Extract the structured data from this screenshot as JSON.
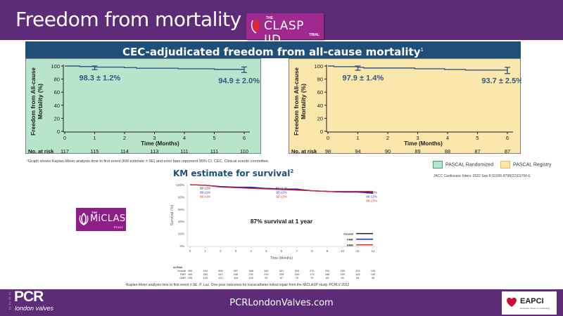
{
  "header": {
    "title": "Freedom from mortality",
    "trial_logo": {
      "the": "THE",
      "name": "CLASP IID",
      "trial": "TRIAL"
    }
  },
  "band": {
    "title": "CEC-adjudicated freedom from all-cause mortality",
    "superscript": "1"
  },
  "colors": {
    "header_bg": "#5d2b78",
    "band_bg": "#1f4e79",
    "randomized_bg": "#b7e4cb",
    "registry_bg": "#fbe6ac",
    "curve": "#2e5a87",
    "overall": "#222222",
    "fmr": "#1f1fd6",
    "dmr": "#e0262a"
  },
  "footnote1": "¹Graph shows Kaplan-Meier analysis time to first event (KM estimate ± SE) and error bars represent 95% CI. CEC, Clinical events committee.",
  "legend": [
    {
      "label": "PASCAL Randomized",
      "color": "#b7e4cb",
      "border": "#3aa07a"
    },
    {
      "label": "PASCAL Registry",
      "color": "#fbe6ac",
      "border": "#e0c060"
    }
  ],
  "citation": "JACC Cardiovasc Interv. 2022 Sep 8;S1936-8798(22)01704-6.",
  "km": {
    "title": "KM estimate for survival",
    "superscript": "2",
    "annotation": "87% survival at 1 year",
    "at_risk_title": "At Risk",
    "footnote": "²Kaplan-Meier analysis time to first event ± SE. P. Luz. One-year outcomes for transcatheter mitral repair from the MiCLASP study. PCRLV 2022"
  },
  "miclasp_logo": {
    "the": "THE",
    "name": "MiCLASP",
    "study": "STUDY"
  },
  "footer": {
    "year": "2022",
    "brand": "PCR",
    "brand_sub": "london valves",
    "url": "PCRLondonValves.com",
    "partner": "EAPCI",
    "partner_sub": "European Society of Cardiology"
  },
  "chart_data": [
    {
      "type": "line",
      "title": "PASCAL Randomized",
      "xlabel": "Time (Months)",
      "ylabel": "Freedom from All-cause Mortality (%)",
      "x_ticks": [
        "0",
        "1",
        "2",
        "3",
        "4",
        "5",
        "6"
      ],
      "y_ticks": [
        "0",
        "20",
        "40",
        "60",
        "80",
        "100"
      ],
      "xlim": [
        0,
        6
      ],
      "ylim": [
        0,
        100
      ],
      "series": [
        {
          "name": "KM estimate",
          "x": [
            0,
            0.5,
            1,
            2,
            2.4,
            3.8,
            5,
            6
          ],
          "y": [
            100,
            99.2,
            98.3,
            97.5,
            96.6,
            95.8,
            94.9,
            94.9
          ]
        }
      ],
      "error_bars": [
        {
          "x": 1,
          "y": 98.3,
          "lo": 94.5,
          "hi": 100
        },
        {
          "x": 6,
          "y": 94.9,
          "lo": 90,
          "hi": 98.5
        }
      ],
      "annotations": [
        "98.3 ± 1.2%",
        "94.9 ± 2.0%"
      ],
      "at_risk_label": "No. at risk",
      "at_risk": [
        "117",
        "115",
        "114",
        "113",
        "111",
        "111",
        "110"
      ]
    },
    {
      "type": "line",
      "title": "PASCAL Registry",
      "xlabel": "Time (Months)",
      "ylabel": "Freedom from All-cause Mortality (%)",
      "x_ticks": [
        "0",
        "1",
        "2",
        "3",
        "4",
        "5",
        "6"
      ],
      "y_ticks": [
        "0",
        "20",
        "40",
        "60",
        "80",
        "100"
      ],
      "xlim": [
        0,
        6
      ],
      "ylim": [
        0,
        100
      ],
      "series": [
        {
          "name": "KM estimate",
          "x": [
            0,
            0.2,
            1,
            1.2,
            2,
            2.9,
            3.9,
            4.6,
            6
          ],
          "y": [
            100,
            99,
            97.9,
            96.9,
            96.9,
            95.8,
            94.7,
            93.7,
            93.7
          ]
        }
      ],
      "error_bars": [
        {
          "x": 1,
          "y": 97.9,
          "lo": 93.5,
          "hi": 100
        },
        {
          "x": 6,
          "y": 93.7,
          "lo": 88.5,
          "hi": 98
        }
      ],
      "annotations": [
        "97.9 ± 1.4%",
        "93.7 ± 2.5%"
      ],
      "at_risk_label": "No. at risk",
      "at_risk": [
        "98",
        "94",
        "90",
        "89",
        "88",
        "87",
        "87"
      ]
    },
    {
      "type": "line",
      "title": "KM estimate for survival",
      "xlabel": "Time (Months)",
      "ylabel": "Survival (%)",
      "x_ticks": [
        "0",
        "1",
        "2",
        "3",
        "4",
        "5",
        "6",
        "7",
        "8",
        "9",
        "10",
        "11",
        "12"
      ],
      "y_ticks": [
        "0%",
        "20%",
        "40%",
        "60%",
        "80%",
        "100%"
      ],
      "xlim": [
        0,
        12
      ],
      "ylim": [
        0,
        100
      ],
      "series": [
        {
          "name": "Overall",
          "x": [
            0,
            1,
            2,
            3,
            4,
            5,
            6,
            7,
            8,
            9,
            10,
            11,
            12
          ],
          "y": [
            100,
            99,
            97,
            96,
            95,
            94,
            93,
            92,
            90,
            89,
            88,
            88,
            87
          ]
        },
        {
          "name": "FMR",
          "x": [
            0,
            1,
            2,
            3,
            4,
            5,
            6,
            7,
            8,
            9,
            10,
            11,
            12
          ],
          "y": [
            100,
            99,
            97,
            96,
            96,
            94,
            93,
            93,
            90,
            89,
            88,
            88,
            86
          ]
        },
        {
          "name": "DMR",
          "x": [
            0,
            1,
            2,
            3,
            4,
            5,
            6,
            7,
            8,
            9,
            10,
            11,
            12
          ],
          "y": [
            100,
            99,
            96,
            95,
            94,
            93,
            92,
            91,
            90,
            89,
            89,
            89,
            89
          ]
        }
      ],
      "annotations": {
        "month1": {
          "Overall": "99 ±1%",
          "FMR": "99 ±1%",
          "DMR": "99 ±1%"
        },
        "month6": {
          "Overall": "93 ±1 %",
          "FMR": "93 ±2%",
          "DMR": "92 ±2%"
        },
        "month12": {
          "Overall": "87 ±2%",
          "FMR": "86 ±2%",
          "DMR": "89 ±3%"
        }
      },
      "legend": [
        "Overall",
        "FMR",
        "DMR"
      ],
      "legend_position": "bottom-right",
      "at_risk": {
        "Overall": [
          "450",
          "434",
          "408",
          "397",
          "368",
          "340",
          "321",
          "300",
          "270",
          "254",
          "239",
          "223",
          "193"
        ],
        "FMR": [
          "269",
          "263",
          "247",
          "245",
          "232",
          "219",
          "205",
          "194",
          "173",
          "168",
          "159",
          "149",
          "130"
        ],
        "DMR": [
          "135",
          "129",
          "121",
          "116",
          "102",
          "90",
          "87",
          "78",
          "70",
          "63",
          "59",
          "54",
          "45"
        ]
      }
    }
  ]
}
